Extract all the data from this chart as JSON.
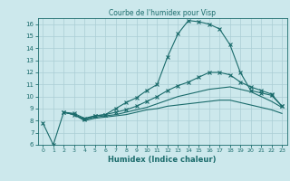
{
  "title": "Courbe de l'humidex pour Visp",
  "xlabel": "Humidex (Indice chaleur)",
  "bg_color": "#cce8ec",
  "grid_color": "#aacdd4",
  "line_color": "#1a6b6b",
  "xlim": [
    -0.5,
    23.5
  ],
  "ylim": [
    6,
    16.5
  ],
  "xticks": [
    0,
    1,
    2,
    3,
    4,
    5,
    6,
    7,
    8,
    9,
    10,
    11,
    12,
    13,
    14,
    15,
    16,
    17,
    18,
    19,
    20,
    21,
    22,
    23
  ],
  "yticks": [
    6,
    7,
    8,
    9,
    10,
    11,
    12,
    13,
    14,
    15,
    16
  ],
  "line1_x": [
    0,
    1,
    2,
    3,
    4,
    5,
    6,
    7,
    8,
    9,
    10,
    11,
    12,
    13,
    14,
    15,
    16,
    17,
    18,
    19,
    20,
    21,
    22,
    23
  ],
  "line1_y": [
    7.8,
    6.0,
    8.7,
    8.5,
    8.1,
    8.4,
    8.5,
    9.0,
    9.5,
    9.9,
    10.5,
    11.0,
    13.3,
    15.2,
    16.3,
    16.2,
    16.0,
    15.6,
    14.3,
    12.0,
    10.5,
    10.3,
    10.1,
    9.2
  ],
  "line2_x": [
    2,
    3,
    4,
    5,
    6,
    7,
    8,
    9,
    10,
    11,
    12,
    13,
    14,
    15,
    16,
    17,
    18,
    19,
    20,
    21,
    22,
    23
  ],
  "line2_y": [
    8.7,
    8.6,
    8.2,
    8.4,
    8.5,
    8.7,
    8.9,
    9.2,
    9.6,
    10.0,
    10.5,
    10.9,
    11.2,
    11.6,
    12.0,
    12.0,
    11.8,
    11.2,
    10.8,
    10.5,
    10.2,
    9.2
  ],
  "line3_x": [
    2,
    3,
    4,
    5,
    6,
    7,
    8,
    9,
    10,
    11,
    12,
    13,
    14,
    15,
    16,
    17,
    18,
    19,
    20,
    21,
    22,
    23
  ],
  "line3_y": [
    8.7,
    8.5,
    8.1,
    8.3,
    8.4,
    8.5,
    8.7,
    8.9,
    9.1,
    9.4,
    9.7,
    10.0,
    10.2,
    10.4,
    10.6,
    10.7,
    10.8,
    10.6,
    10.4,
    10.0,
    9.6,
    9.1
  ],
  "line4_x": [
    2,
    3,
    4,
    5,
    6,
    7,
    8,
    9,
    10,
    11,
    12,
    13,
    14,
    15,
    16,
    17,
    18,
    19,
    20,
    21,
    22,
    23
  ],
  "line4_y": [
    8.7,
    8.5,
    8.0,
    8.2,
    8.3,
    8.4,
    8.5,
    8.7,
    8.9,
    9.0,
    9.2,
    9.3,
    9.4,
    9.5,
    9.6,
    9.7,
    9.7,
    9.5,
    9.3,
    9.1,
    8.9,
    8.6
  ]
}
